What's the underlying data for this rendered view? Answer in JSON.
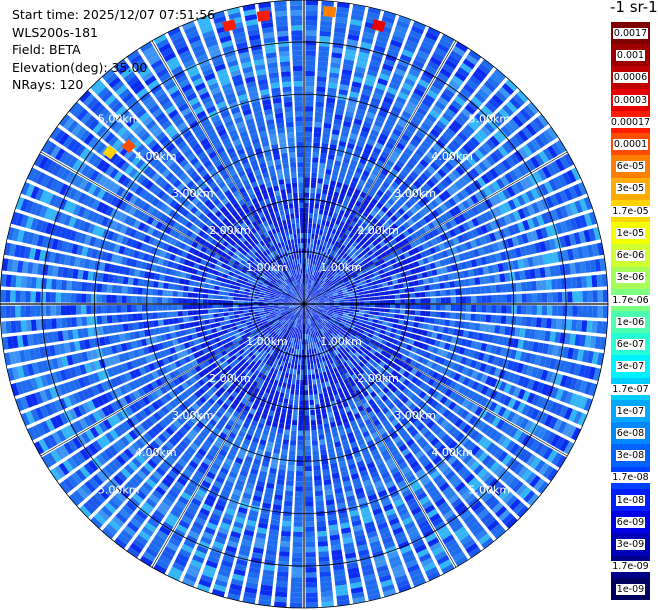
{
  "header": {
    "start_time": "Start time: 2025/12/07 07:51:56",
    "instrument": "WLS200s-181",
    "field": "Field: BETA",
    "elevation": "Elevation(deg): 35.00",
    "nrays": "NRays: 120"
  },
  "colorbar": {
    "title": "-1 sr-1",
    "levels": [
      {
        "label": "0.0017",
        "color": "#7f0000"
      },
      {
        "label": "0.001",
        "color": "#9e0000"
      },
      {
        "label": "0.0006",
        "color": "#bf0000"
      },
      {
        "label": "0.0003",
        "color": "#e60000"
      },
      {
        "label": "0.00017",
        "color": "#ff1a00"
      },
      {
        "label": "0.0001",
        "color": "#ff4d00"
      },
      {
        "label": "6e-05",
        "color": "#ff7f00"
      },
      {
        "label": "3e-05",
        "color": "#ffab00"
      },
      {
        "label": "1.7e-05",
        "color": "#ffd400"
      },
      {
        "label": "1e-05",
        "color": "#f4ff00"
      },
      {
        "label": "6e-06",
        "color": "#cfff2e"
      },
      {
        "label": "3e-06",
        "color": "#a6ff59"
      },
      {
        "label": "1.7e-06",
        "color": "#7dff82"
      },
      {
        "label": "1e-06",
        "color": "#4dffb0"
      },
      {
        "label": "6e-07",
        "color": "#26ffd6"
      },
      {
        "label": "3e-07",
        "color": "#00f2ff"
      },
      {
        "label": "1.7e-07",
        "color": "#00ccff"
      },
      {
        "label": "1e-07",
        "color": "#00a8ff"
      },
      {
        "label": "6e-08",
        "color": "#0088ff"
      },
      {
        "label": "3e-08",
        "color": "#0062ff"
      },
      {
        "label": "1.7e-08",
        "color": "#0040ff"
      },
      {
        "label": "1e-08",
        "color": "#001eff"
      },
      {
        "label": "6e-09",
        "color": "#0000e6"
      },
      {
        "label": "3e-09",
        "color": "#0000b8"
      },
      {
        "label": "1.7e-09",
        "color": "#00008a"
      },
      {
        "label": "1e-09",
        "color": "#000060"
      }
    ]
  },
  "range_rings": {
    "labels": [
      "1.00km",
      "2.00km",
      "3.00km",
      "4.00km",
      "5.00km"
    ],
    "max_range_km": 5.8
  },
  "scan": {
    "n_rays": 120,
    "n_gates": 60,
    "background_color": "#1f6cf0",
    "hotspots": [
      {
        "azimuth_deg": 345,
        "range_km": 5.5,
        "color": "#ff1a00"
      },
      {
        "azimuth_deg": 352,
        "range_km": 5.55,
        "color": "#ff1a00"
      },
      {
        "azimuth_deg": 5,
        "range_km": 5.6,
        "color": "#ff7f00"
      },
      {
        "azimuth_deg": 15,
        "range_km": 5.5,
        "color": "#e60000"
      },
      {
        "azimuth_deg": 312,
        "range_km": 4.5,
        "color": "#ff4d00"
      },
      {
        "azimuth_deg": 308,
        "range_km": 4.7,
        "color": "#ffd400"
      }
    ]
  }
}
